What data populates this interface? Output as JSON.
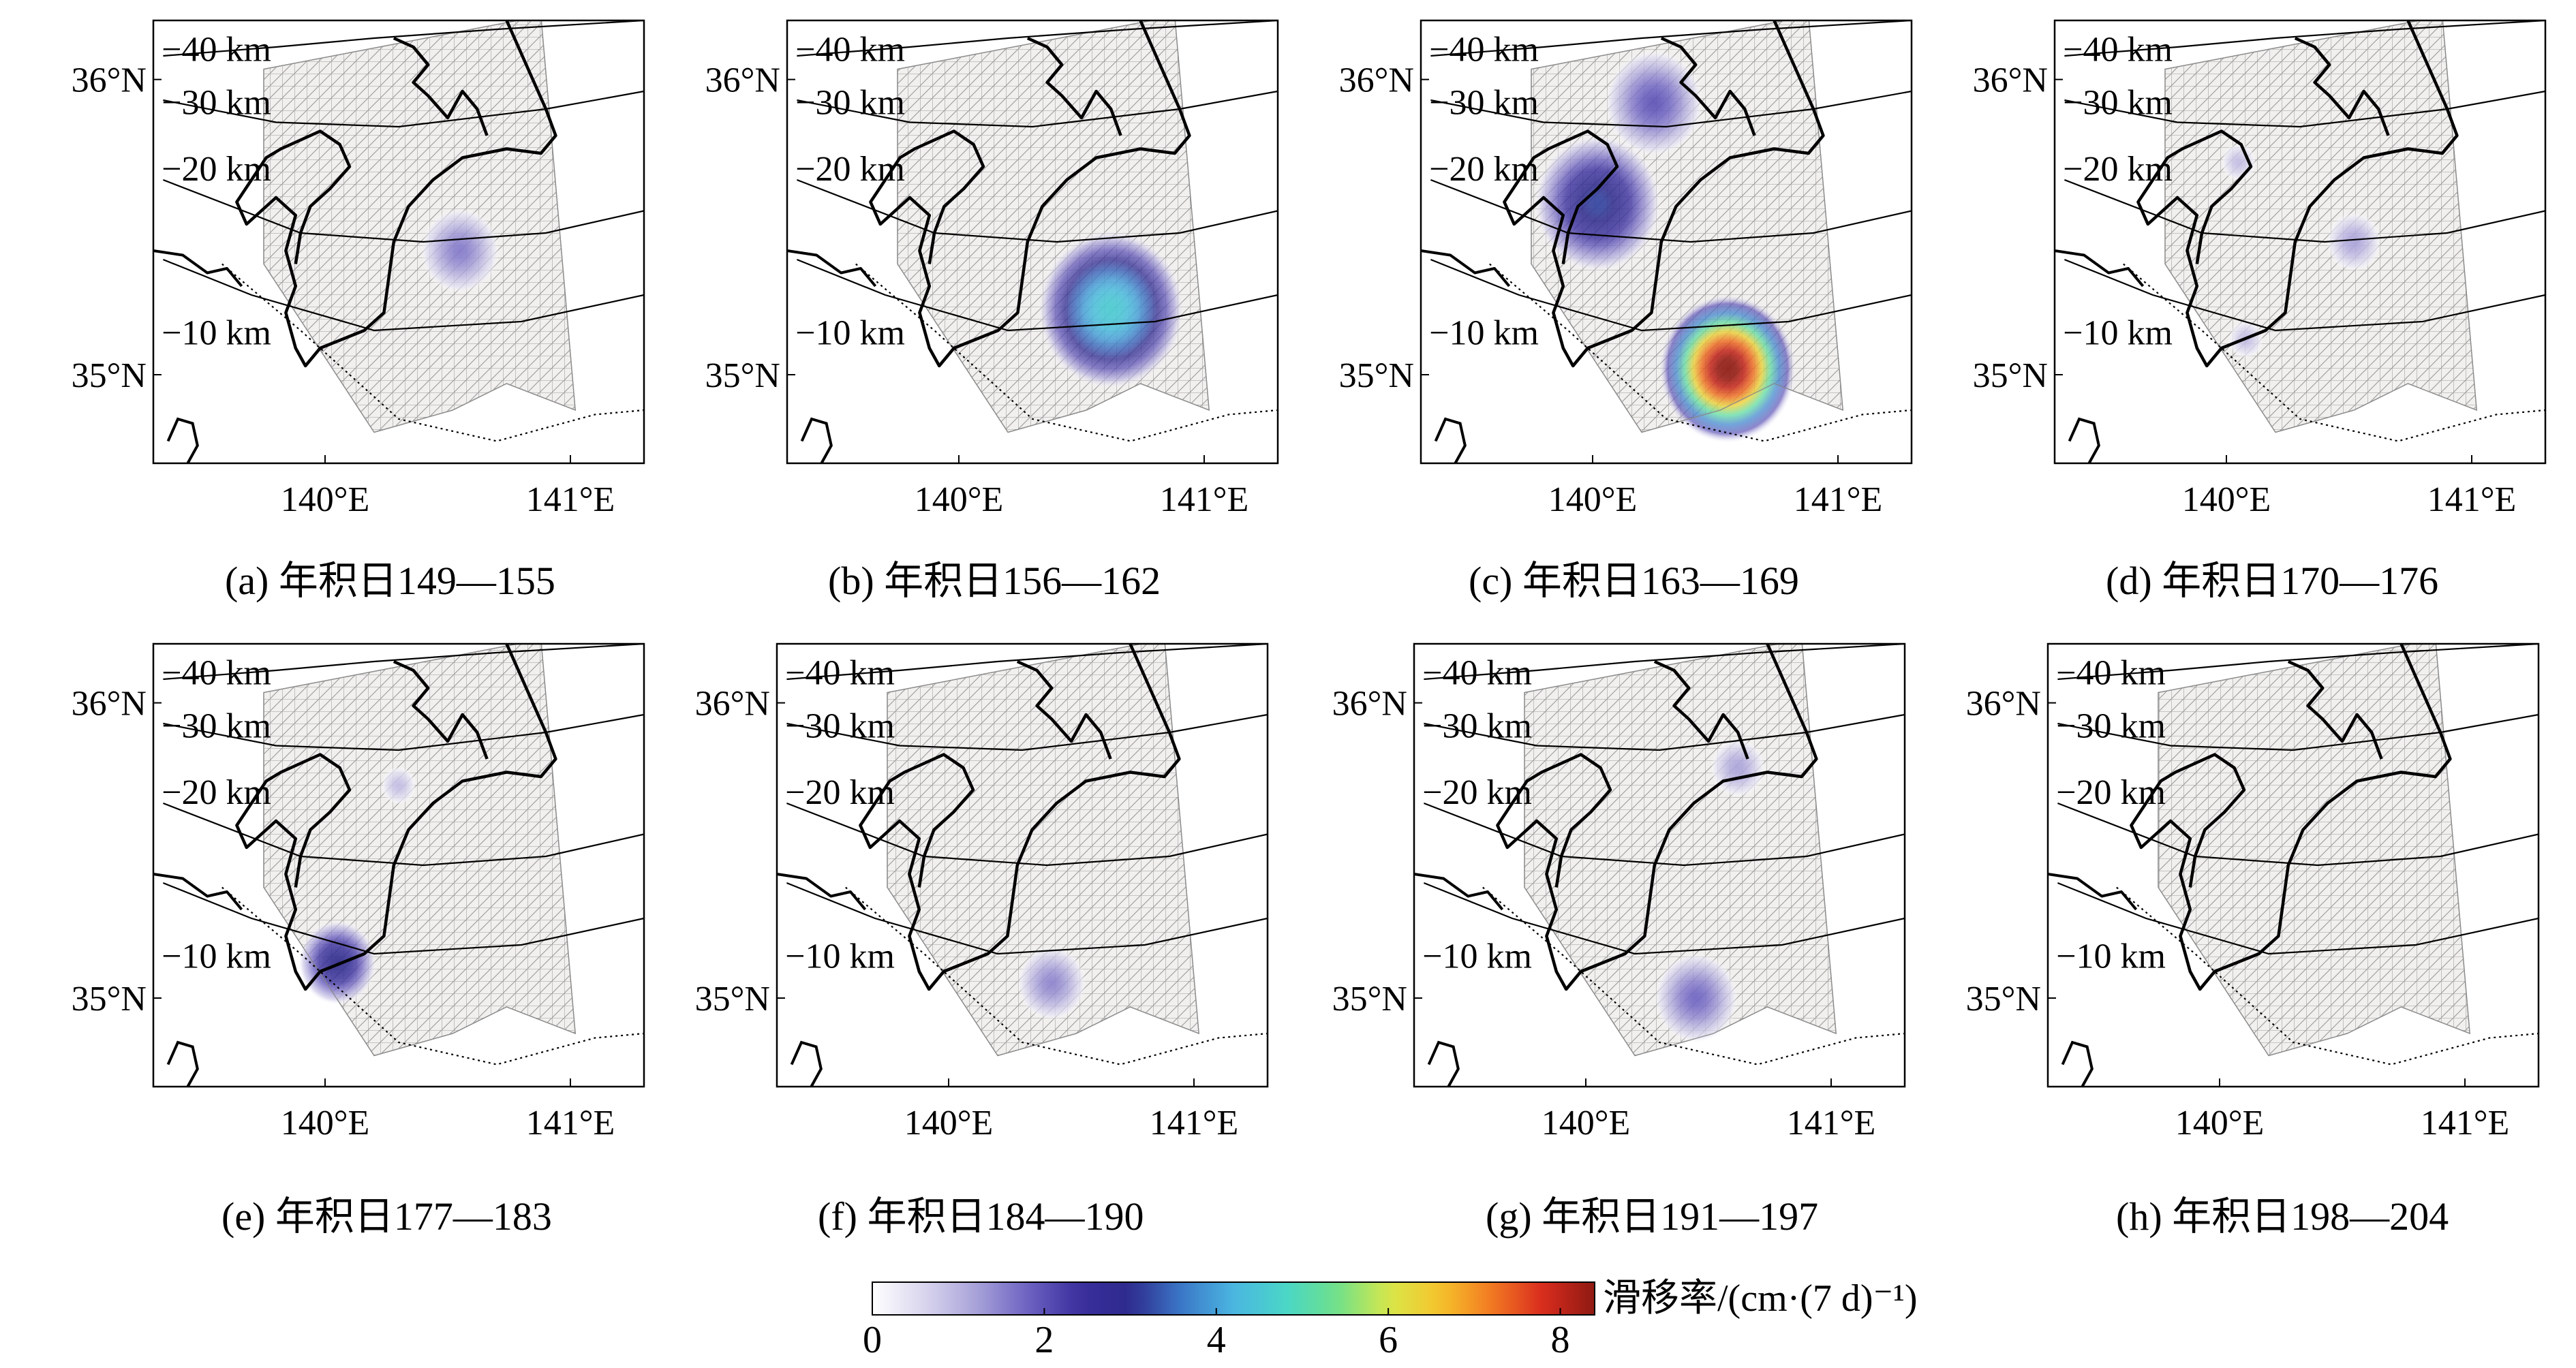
{
  "chart_data": {
    "type": "heatmap",
    "description_units": "slip rate over 7-day windows mapped on fault mesh",
    "axes": {
      "lon_range": [
        139.3,
        141.3
      ],
      "lat_range": [
        34.7,
        36.2
      ],
      "lon_ticks": [
        140,
        141
      ],
      "lon_tick_labels": [
        "140°E",
        "141°E"
      ],
      "lat_ticks": [
        35,
        36
      ],
      "lat_tick_labels": [
        "35°N",
        "36°N"
      ]
    },
    "depth_contours": [
      "−40 km",
      "−30 km",
      "−20 km",
      "−10 km"
    ],
    "panels": [
      {
        "caption": "(a) 年积日149—155",
        "patches": [
          {
            "lon": 140.55,
            "lat": 35.42,
            "r": 0.16,
            "value": 1.6
          }
        ]
      },
      {
        "caption": "(b) 年积日156—162",
        "patches": [
          {
            "lon": 140.62,
            "lat": 35.22,
            "r": 0.3,
            "value": 4.6
          }
        ]
      },
      {
        "caption": "(c) 年积日163—169",
        "patches": [
          {
            "lon": 140.02,
            "lat": 35.58,
            "r": 0.26,
            "value": 3.2
          },
          {
            "lon": 140.25,
            "lat": 35.92,
            "r": 0.2,
            "value": 2.0
          },
          {
            "lon": 140.55,
            "lat": 35.02,
            "r": 0.28,
            "value": 8.5
          }
        ]
      },
      {
        "caption": "(d) 年积日170—176",
        "patches": [
          {
            "lon": 140.52,
            "lat": 35.45,
            "r": 0.11,
            "value": 1.2
          },
          {
            "lon": 140.05,
            "lat": 35.72,
            "r": 0.07,
            "value": 0.9
          },
          {
            "lon": 140.08,
            "lat": 35.12,
            "r": 0.07,
            "value": 0.9
          }
        ]
      },
      {
        "caption": "(e) 年积日177—183",
        "patches": [
          {
            "lon": 140.05,
            "lat": 35.12,
            "r": 0.16,
            "value": 3.0
          },
          {
            "lon": 140.3,
            "lat": 35.72,
            "r": 0.07,
            "value": 0.9
          }
        ]
      },
      {
        "caption": "(f) 年积日184—190",
        "patches": [
          {
            "lon": 140.42,
            "lat": 35.05,
            "r": 0.14,
            "value": 1.5
          }
        ]
      },
      {
        "caption": "(g) 年积日191—197",
        "patches": [
          {
            "lon": 140.45,
            "lat": 35.0,
            "r": 0.17,
            "value": 1.8
          },
          {
            "lon": 140.62,
            "lat": 35.78,
            "r": 0.11,
            "value": 1.2
          }
        ]
      },
      {
        "caption": "(h) 年积日198—204",
        "patches": []
      }
    ],
    "colorbar": {
      "label": "滑移率/(cm·(7 d)⁻¹)",
      "min": 0,
      "max": 8.4,
      "ticks": [
        0,
        2,
        4,
        6,
        8
      ],
      "colormap": [
        "#ffffff",
        "#d9d6ee",
        "#a9a3d9",
        "#6e63c2",
        "#3a2f9e",
        "#2e2a8c",
        "#3b78c8",
        "#4bb6e0",
        "#49d6c8",
        "#6ee08a",
        "#d8e84a",
        "#f6c42b",
        "#f27a22",
        "#d92b1e",
        "#8e1a12"
      ]
    }
  }
}
